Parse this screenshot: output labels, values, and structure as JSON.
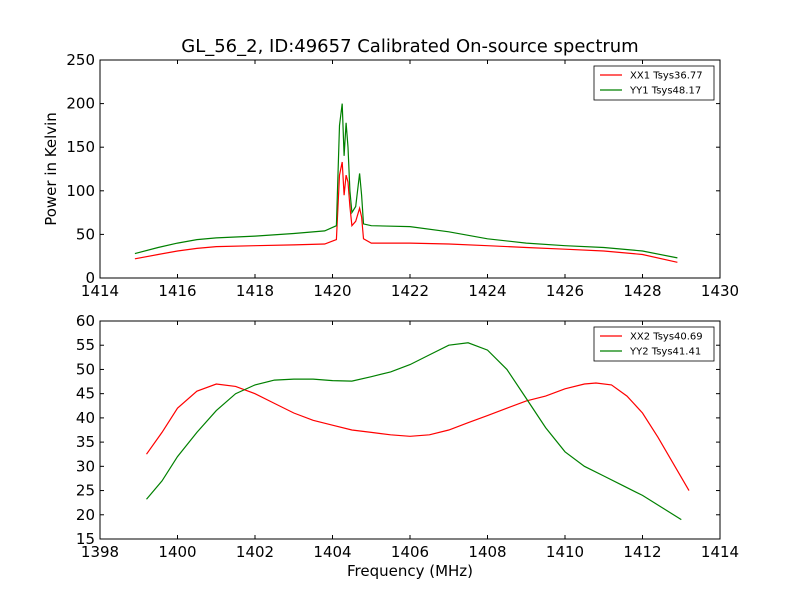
{
  "figure": {
    "title": "GL_56_2, ID:49657 Calibrated On-source spectrum"
  },
  "chart_data": [
    {
      "type": "line",
      "ylabel": "Power in Kelvin",
      "xlabel": "",
      "xlim": [
        1414,
        1430
      ],
      "ylim": [
        0,
        250
      ],
      "xticks": [
        1414,
        1416,
        1418,
        1420,
        1422,
        1424,
        1426,
        1428,
        1430
      ],
      "yticks": [
        0,
        50,
        100,
        150,
        200,
        250
      ],
      "legend_position": "top-right",
      "series": [
        {
          "name": "XX1 Tsys36.77",
          "color": "#ff0000",
          "x": [
            1414.9,
            1415.5,
            1416.0,
            1416.5,
            1417.0,
            1418.0,
            1419.0,
            1419.8,
            1420.1,
            1420.18,
            1420.25,
            1420.3,
            1420.35,
            1420.4,
            1420.45,
            1420.5,
            1420.6,
            1420.7,
            1420.75,
            1420.8,
            1421.0,
            1422.0,
            1423.0,
            1424.0,
            1425.0,
            1426.0,
            1427.0,
            1428.0,
            1428.9
          ],
          "y": [
            22,
            27,
            31,
            34,
            36,
            37,
            38,
            39,
            44,
            118,
            133,
            95,
            118,
            110,
            82,
            60,
            65,
            80,
            70,
            45,
            40,
            40,
            39,
            37,
            35,
            33,
            31,
            27,
            18
          ]
        },
        {
          "name": "YY1 Tsys48.17",
          "color": "#008000",
          "x": [
            1414.9,
            1415.5,
            1416.0,
            1416.5,
            1417.0,
            1418.0,
            1419.0,
            1419.8,
            1420.1,
            1420.18,
            1420.25,
            1420.3,
            1420.35,
            1420.4,
            1420.45,
            1420.5,
            1420.6,
            1420.7,
            1420.75,
            1420.8,
            1421.0,
            1422.0,
            1423.0,
            1424.0,
            1425.0,
            1426.0,
            1427.0,
            1428.0,
            1428.9
          ],
          "y": [
            28,
            35,
            40,
            44,
            46,
            48,
            51,
            54,
            60,
            175,
            200,
            140,
            178,
            150,
            100,
            75,
            82,
            120,
            95,
            62,
            60,
            59,
            53,
            45,
            40,
            37,
            35,
            31,
            23
          ]
        }
      ]
    },
    {
      "type": "line",
      "ylabel": "",
      "xlabel": "Frequency (MHz)",
      "xlim": [
        1398,
        1414
      ],
      "ylim": [
        15,
        60
      ],
      "xticks": [
        1398,
        1400,
        1402,
        1404,
        1406,
        1408,
        1410,
        1412,
        1414
      ],
      "yticks": [
        15,
        20,
        25,
        30,
        35,
        40,
        45,
        50,
        55,
        60
      ],
      "legend_position": "top-right",
      "series": [
        {
          "name": "XX2 Tsys40.69",
          "color": "#ff0000",
          "x": [
            1399.2,
            1399.6,
            1400.0,
            1400.5,
            1401.0,
            1401.5,
            1402.0,
            1402.5,
            1403.0,
            1403.5,
            1404.0,
            1404.5,
            1405.0,
            1405.5,
            1406.0,
            1406.5,
            1407.0,
            1407.5,
            1408.0,
            1408.5,
            1409.0,
            1409.5,
            1410.0,
            1410.5,
            1410.8,
            1411.2,
            1411.6,
            1412.0,
            1412.4,
            1412.8,
            1413.2
          ],
          "y": [
            32.5,
            37,
            42,
            45.5,
            47,
            46.5,
            45,
            43,
            41,
            39.5,
            38.5,
            37.5,
            37,
            36.5,
            36.2,
            36.5,
            37.5,
            39,
            40.5,
            42,
            43.5,
            44.5,
            46,
            47,
            47.2,
            46.8,
            44.5,
            41,
            36,
            30.5,
            25
          ]
        },
        {
          "name": "YY2 Tsys41.41",
          "color": "#008000",
          "x": [
            1399.2,
            1399.6,
            1400.0,
            1400.5,
            1401.0,
            1401.5,
            1402.0,
            1402.5,
            1403.0,
            1403.5,
            1404.0,
            1404.5,
            1405.0,
            1405.5,
            1406.0,
            1406.5,
            1407.0,
            1407.5,
            1408.0,
            1408.5,
            1409.0,
            1409.5,
            1410.0,
            1410.5,
            1411.0,
            1411.5,
            1412.0,
            1412.5,
            1413.0
          ],
          "y": [
            23.2,
            27,
            32,
            37,
            41.5,
            45,
            46.8,
            47.8,
            48,
            48,
            47.7,
            47.6,
            48.5,
            49.5,
            51,
            53,
            55,
            55.5,
            54,
            50,
            44,
            38,
            33,
            30,
            28,
            26,
            24,
            21.5,
            19
          ]
        }
      ]
    }
  ]
}
